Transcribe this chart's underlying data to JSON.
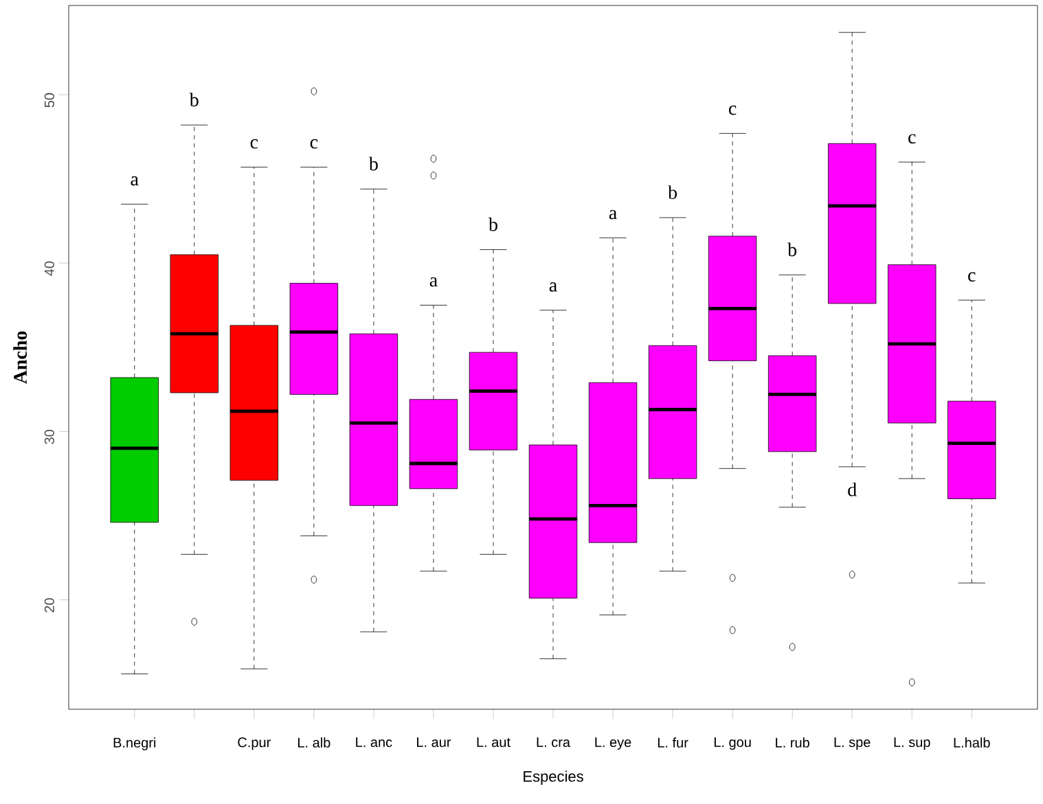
{
  "chart_data": {
    "type": "box",
    "xlabel": "Especies",
    "ylabel": "Ancho",
    "categories": [
      "B.negri",
      null,
      "C.pur",
      "L. alb",
      "L. anc",
      "L. aur",
      "L. aut",
      "L. cra",
      "L. eye",
      "L. fur",
      "L. gou",
      "L. rub",
      "L. spe",
      "L. sup",
      "L.halb"
    ],
    "colors": [
      "#00cc00",
      "#ff0000",
      "#ff0000",
      "#ff00ff",
      "#ff00ff",
      "#ff00ff",
      "#ff00ff",
      "#ff00ff",
      "#ff00ff",
      "#ff00ff",
      "#ff00ff",
      "#ff00ff",
      "#ff00ff",
      "#ff00ff",
      "#ff00ff"
    ],
    "boxes": [
      {
        "low": 15.6,
        "q1": 24.6,
        "median": 29.0,
        "q3": 33.2,
        "high": 43.5
      },
      {
        "low": 22.7,
        "q1": 32.3,
        "median": 35.8,
        "q3": 40.5,
        "high": 48.2,
        "outliers": [
          18.7
        ]
      },
      {
        "low": 15.9,
        "q1": 27.1,
        "median": 31.2,
        "q3": 36.3,
        "high": 45.7
      },
      {
        "low": 23.8,
        "q1": 32.2,
        "median": 35.9,
        "q3": 38.8,
        "high": 45.7,
        "outliers": [
          21.2,
          50.2
        ]
      },
      {
        "low": 18.1,
        "q1": 25.6,
        "median": 30.5,
        "q3": 35.8,
        "high": 44.4
      },
      {
        "low": 21.7,
        "q1": 26.6,
        "median": 28.1,
        "q3": 31.9,
        "high": 37.5,
        "outliers": [
          45.2,
          46.2
        ]
      },
      {
        "low": 22.7,
        "q1": 28.9,
        "median": 32.4,
        "q3": 34.7,
        "high": 40.8
      },
      {
        "low": 16.5,
        "q1": 20.1,
        "median": 24.8,
        "q3": 29.2,
        "high": 37.2
      },
      {
        "low": 19.1,
        "q1": 23.4,
        "median": 25.6,
        "q3": 32.9,
        "high": 41.5
      },
      {
        "low": 21.7,
        "q1": 27.2,
        "median": 31.3,
        "q3": 35.1,
        "high": 42.7
      },
      {
        "low": 27.8,
        "q1": 34.2,
        "median": 37.3,
        "q3": 41.6,
        "high": 47.7,
        "outliers": [
          21.3,
          18.2
        ]
      },
      {
        "low": 25.5,
        "q1": 28.8,
        "median": 32.2,
        "q3": 34.5,
        "high": 39.3,
        "outliers": [
          17.2
        ]
      },
      {
        "low": 27.9,
        "q1": 37.6,
        "median": 43.4,
        "q3": 47.1,
        "high": 53.7,
        "outliers": [
          21.5
        ]
      },
      {
        "low": 27.2,
        "q1": 30.5,
        "median": 35.2,
        "q3": 39.9,
        "high": 46.0,
        "outliers": [
          15.1
        ]
      },
      {
        "low": 21.0,
        "q1": 26.0,
        "median": 29.3,
        "q3": 31.8,
        "high": 37.8
      }
    ],
    "ylim": [
      13.5,
      55.3
    ],
    "yticks": [
      20,
      30,
      40,
      50
    ],
    "annotations": [
      "a",
      "b",
      "c",
      "c",
      "b",
      "a",
      "b",
      "a",
      "a",
      "b",
      "c",
      "b",
      "d",
      "c",
      "c"
    ]
  }
}
